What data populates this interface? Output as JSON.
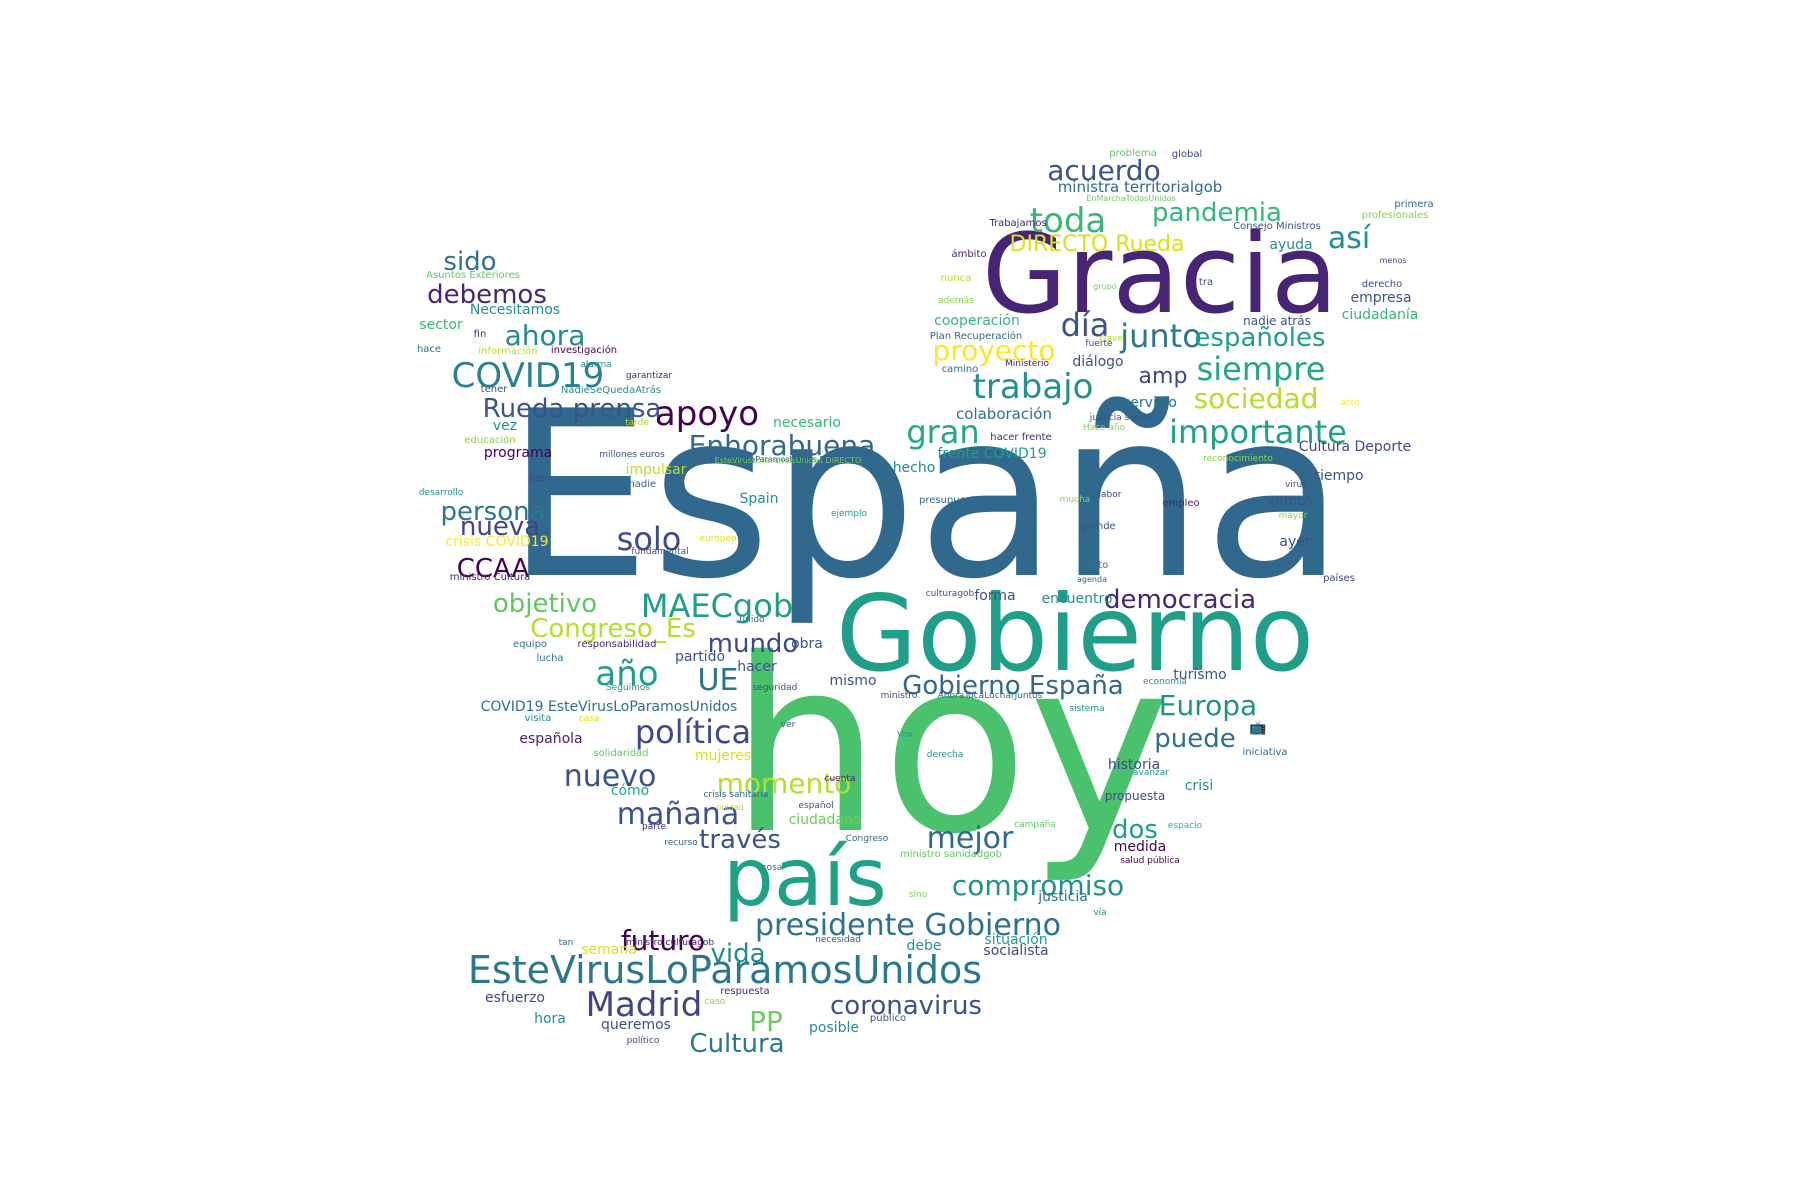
{
  "words": [
    {
      "text": "España",
      "color": "#31688e"
    },
    {
      "text": "hoy",
      "color": "#4ac16d"
    },
    {
      "text": "Gracia",
      "color": "#482475"
    },
    {
      "text": "Gobierno",
      "color": "#1f9e89"
    },
    {
      "text": "país",
      "color": "#1fa187"
    },
    {
      "text": "EsteVirusLoParamosUnidos",
      "color": "#2a788e"
    },
    {
      "text": "COVID19",
      "color": "#26828e"
    },
    {
      "text": "presidente Gobierno",
      "color": "#2c728e"
    },
    {
      "text": "Madrid",
      "color": "#414487"
    },
    {
      "text": "toda",
      "color": "#35b779"
    },
    {
      "text": "junto",
      "color": "#2a788e"
    },
    {
      "text": "día",
      "color": "#3b528b"
    },
    {
      "text": "trabajo",
      "color": "#21918c"
    },
    {
      "text": "siempre",
      "color": "#22a884"
    },
    {
      "text": "importante",
      "color": "#1fa187"
    },
    {
      "text": "acuerdo",
      "color": "#3b528b"
    },
    {
      "text": "pandemia",
      "color": "#35b779"
    },
    {
      "text": "así",
      "color": "#21918c"
    },
    {
      "text": "proyecto",
      "color": "#fde725"
    },
    {
      "text": "sociedad",
      "color": "#b5de2b"
    },
    {
      "text": "gran",
      "color": "#22a884"
    },
    {
      "text": "apoyo",
      "color": "#440154"
    },
    {
      "text": "Rueda prensa",
      "color": "#3b528b"
    },
    {
      "text": "sido",
      "color": "#2c728e"
    },
    {
      "text": "debemos",
      "color": "#482475"
    },
    {
      "text": "ahora",
      "color": "#238a8d"
    },
    {
      "text": "Enhorabuena",
      "color": "#31688e"
    },
    {
      "text": "persona",
      "color": "#2a788e"
    },
    {
      "text": "nueva",
      "color": "#414487"
    },
    {
      "text": "solo",
      "color": "#3e4989"
    },
    {
      "text": "CCAA",
      "color": "#440154"
    },
    {
      "text": "objetivo",
      "color": "#5ec962"
    },
    {
      "text": "MAECgob",
      "color": "#1f9e89"
    },
    {
      "text": "Congreso_Es",
      "color": "#b5de2b"
    },
    {
      "text": "año",
      "color": "#1f9e89"
    },
    {
      "text": "UE",
      "color": "#2c728e"
    },
    {
      "text": "mundo",
      "color": "#3e4989"
    },
    {
      "text": "Gobierno España",
      "color": "#31688e"
    },
    {
      "text": "Europa",
      "color": "#21918c"
    },
    {
      "text": "política",
      "color": "#3e4989"
    },
    {
      "text": "puede",
      "color": "#2c728e"
    },
    {
      "text": "nuevo",
      "color": "#3b528b"
    },
    {
      "text": "momento",
      "color": "#b5de2b"
    },
    {
      "text": "mañana",
      "color": "#3b528b"
    },
    {
      "text": "mejor",
      "color": "#31688e"
    },
    {
      "text": "dos",
      "color": "#1f9e89"
    },
    {
      "text": "través",
      "color": "#3b528b"
    },
    {
      "text": "compromiso",
      "color": "#21918c"
    },
    {
      "text": "futuro",
      "color": "#440154"
    },
    {
      "text": "vida",
      "color": "#238a8d"
    },
    {
      "text": "PP",
      "color": "#6ccd5a"
    },
    {
      "text": "coronavirus",
      "color": "#3b528b"
    },
    {
      "text": "Cultura",
      "color": "#2a788e"
    },
    {
      "text": "democracia",
      "color": "#482475"
    },
    {
      "text": "españoles",
      "color": "#1f9e89"
    },
    {
      "text": "amp",
      "color": "#414487"
    },
    {
      "text": "DIRECTO Rueda",
      "color": "#d8e219"
    },
    {
      "text": "ministra territorialgob",
      "color": "#31688e"
    },
    {
      "text": "Trabajamos",
      "color": "#482475"
    },
    {
      "text": "problema",
      "color": "#5ec962"
    },
    {
      "text": "global",
      "color": "#3e4989"
    },
    {
      "text": "EnMarchaTodosUnidos",
      "color": "#6ccd5a"
    },
    {
      "text": "primera",
      "color": "#31688e"
    },
    {
      "text": "profesionales",
      "color": "#84d44b"
    },
    {
      "text": "Consejo Ministros",
      "color": "#3b528b"
    },
    {
      "text": "ámbito",
      "color": "#482475"
    },
    {
      "text": "ayuda",
      "color": "#21918c"
    },
    {
      "text": "menos",
      "color": "#414487"
    },
    {
      "text": "nunca",
      "color": "#b5de2b"
    },
    {
      "text": "tra",
      "color": "#3e4989"
    },
    {
      "text": "derecho",
      "color": "#3e4989"
    },
    {
      "text": "además",
      "color": "#84d44b"
    },
    {
      "text": "grupo",
      "color": "#6ccd5a"
    },
    {
      "text": "clave",
      "color": "#b5de2b"
    },
    {
      "text": "empresa",
      "color": "#3b528b"
    },
    {
      "text": "cooperación",
      "color": "#35b779"
    },
    {
      "text": "nadie atrás",
      "color": "#3b528b"
    },
    {
      "text": "ciudadanía",
      "color": "#35b779"
    },
    {
      "text": "Plan Recuperación",
      "color": "#31688e"
    },
    {
      "text": "fuerte",
      "color": "#3e4989"
    },
    {
      "text": "camino",
      "color": "#31688e"
    },
    {
      "text": "Ministerio",
      "color": "#482475"
    },
    {
      "text": "diálogo",
      "color": "#3b528b"
    },
    {
      "text": "servicio",
      "color": "#2c728e"
    },
    {
      "text": "justicia social",
      "color": "#3b528b"
    },
    {
      "text": "Hace año",
      "color": "#84d44b"
    },
    {
      "text": "colaboración",
      "color": "#2c728e"
    },
    {
      "text": "acto",
      "color": "#fde725"
    },
    {
      "text": "hacer frente",
      "color": "#482475"
    },
    {
      "text": "Cultura Deporte",
      "color": "#3e4989"
    },
    {
      "text": "frente COVID19",
      "color": "#1f9e89"
    },
    {
      "text": "reconocimiento",
      "color": "#84d44b"
    },
    {
      "text": "hecho",
      "color": "#238a8d"
    },
    {
      "text": "tiempo",
      "color": "#3b528b"
    },
    {
      "text": "virus",
      "color": "#3e4989"
    },
    {
      "text": "labor",
      "color": "#3e4989"
    },
    {
      "text": "mucha",
      "color": "#84d44b"
    },
    {
      "text": "presupuesto",
      "color": "#31688e"
    },
    {
      "text": "empleo",
      "color": "#482475"
    },
    {
      "text": "vamos",
      "color": "#3b528b"
    },
    {
      "text": "mayor",
      "color": "#84d44b"
    },
    {
      "text": "grande",
      "color": "#3b528b"
    },
    {
      "text": "ayer",
      "color": "#3e4989"
    },
    {
      "text": "ejemplo",
      "color": "#1f9e89"
    },
    {
      "text": "europeo",
      "color": "#d8e219"
    },
    {
      "text": "dato",
      "color": "#2a788e"
    },
    {
      "text": "agenda",
      "color": "#31688e"
    },
    {
      "text": "países",
      "color": "#3e4989"
    },
    {
      "text": "forma",
      "color": "#3b528b"
    },
    {
      "text": "encuentro",
      "color": "#21918c"
    },
    {
      "text": "culturagob",
      "color": "#3b528b"
    },
    {
      "text": "Spain",
      "color": "#21918c"
    },
    {
      "text": "impulsar",
      "color": "#b5de2b"
    },
    {
      "text": "dejar nadie",
      "color": "#31688e"
    },
    {
      "text": "crisis COVID19",
      "color": "#fde725"
    },
    {
      "text": "fundamental",
      "color": "#3b528b"
    },
    {
      "text": "ministro Cultura",
      "color": "#482475"
    },
    {
      "text": "unido",
      "color": "#31688e"
    },
    {
      "text": "equipo",
      "color": "#2c728e"
    },
    {
      "text": "responsabilidad",
      "color": "#482475"
    },
    {
      "text": "lucha",
      "color": "#2c728e"
    },
    {
      "text": "partido",
      "color": "#3b528b"
    },
    {
      "text": "obra",
      "color": "#3b528b"
    },
    {
      "text": "hacer",
      "color": "#3b528b"
    },
    {
      "text": "Seguimos",
      "color": "#21918c"
    },
    {
      "text": "seguridad",
      "color": "#3b528b"
    },
    {
      "text": "mismo",
      "color": "#3b528b"
    },
    {
      "text": "turismo",
      "color": "#3b528b"
    },
    {
      "text": "economía",
      "color": "#21918c"
    },
    {
      "text": "ministro",
      "color": "#3e4989"
    },
    {
      "text": "AhoraTocaLucharJuntos",
      "color": "#31688e"
    },
    {
      "text": "sistema",
      "color": "#21918c"
    },
    {
      "text": "COVID19 EsteVirusLoParamosUnidos",
      "color": "#2c728e"
    },
    {
      "text": "visita",
      "color": "#21918c"
    },
    {
      "text": "casa",
      "color": "#d8e219"
    },
    {
      "text": "ver",
      "color": "#3b528b"
    },
    {
      "text": "española",
      "color": "#482475"
    },
    {
      "text": "Vox",
      "color": "#1f9e89"
    },
    {
      "text": "solidaridad",
      "color": "#5ec962"
    },
    {
      "text": "mujeres",
      "color": "#d8e219"
    },
    {
      "text": "derecha",
      "color": "#21918c"
    },
    {
      "text": "iniciativa",
      "color": "#31688e"
    },
    {
      "text": "historia",
      "color": "#3e4989"
    },
    {
      "text": "cuenta",
      "color": "#482475"
    },
    {
      "text": "crisi",
      "color": "#21918c"
    },
    {
      "text": "cómo",
      "color": "#22a884"
    },
    {
      "text": "crisis sanitaria",
      "color": "#31688e"
    },
    {
      "text": "español",
      "color": "#3b528b"
    },
    {
      "text": "propuesta",
      "color": "#3e4989"
    },
    {
      "text": "unidad",
      "color": "#b5de2b"
    },
    {
      "text": "ciudadano",
      "color": "#6ccd5a"
    },
    {
      "text": "campaña",
      "color": "#5ec962"
    },
    {
      "text": "espacio",
      "color": "#35b779"
    },
    {
      "text": "parte",
      "color": "#482475"
    },
    {
      "text": "recurso",
      "color": "#31688e"
    },
    {
      "text": "Congreso",
      "color": "#31688e"
    },
    {
      "text": "ministro sanidadgob",
      "color": "#5ec962"
    },
    {
      "text": "medida",
      "color": "#440154"
    },
    {
      "text": "salud pública",
      "color": "#440154"
    },
    {
      "text": "cosa",
      "color": "#2c728e"
    },
    {
      "text": "sino",
      "color": "#84d44b"
    },
    {
      "text": "justicia",
      "color": "#2c728e"
    },
    {
      "text": "vía",
      "color": "#21918c"
    },
    {
      "text": "tan",
      "color": "#31688e"
    },
    {
      "text": "ministro culturagob",
      "color": "#482475"
    },
    {
      "text": "semana",
      "color": "#d8e219"
    },
    {
      "text": "necesidad",
      "color": "#3b528b"
    },
    {
      "text": "debe",
      "color": "#21918c"
    },
    {
      "text": "situación",
      "color": "#1f9e89"
    },
    {
      "text": "socialista",
      "color": "#3e4989"
    },
    {
      "text": "esfuerzo",
      "color": "#3e4989"
    },
    {
      "text": "respuesta",
      "color": "#482475"
    },
    {
      "text": "caso",
      "color": "#84d44b"
    },
    {
      "text": "hora",
      "color": "#21918c"
    },
    {
      "text": "queremos",
      "color": "#3b528b"
    },
    {
      "text": "posible",
      "color": "#21918c"
    },
    {
      "text": "público",
      "color": "#3b528b"
    },
    {
      "text": "político",
      "color": "#3b528b"
    },
    {
      "text": "Asuntos Exteriores",
      "color": "#5ec962"
    },
    {
      "text": "Necesitamos",
      "color": "#21918c"
    },
    {
      "text": "sector",
      "color": "#35b779"
    },
    {
      "text": "fin",
      "color": "#482475"
    },
    {
      "text": "hace",
      "color": "#2c728e"
    },
    {
      "text": "información",
      "color": "#b5de2b"
    },
    {
      "text": "investigación",
      "color": "#440154"
    },
    {
      "text": "alarma",
      "color": "#21918c"
    },
    {
      "text": "garantizar",
      "color": "#482475"
    },
    {
      "text": "tener",
      "color": "#3e4989"
    },
    {
      "text": "NadieSeQuedaAtrás",
      "color": "#21918c"
    },
    {
      "text": "vez",
      "color": "#21918c"
    },
    {
      "text": "tarde",
      "color": "#b5de2b"
    },
    {
      "text": "necesario",
      "color": "#35b779"
    },
    {
      "text": "educación",
      "color": "#84d44b"
    },
    {
      "text": "programa",
      "color": "#440154"
    },
    {
      "text": "millones euros",
      "color": "#3b528b"
    },
    {
      "text": "EsteVirusLoParamosUnidos DIRECTO",
      "color": "#3b528b"
    },
    {
      "text": "desarrollo",
      "color": "#21918c"
    },
    {
      "text": "bien",
      "color": "#3e4989"
    },
    {
      "text": "EsteVirusLoParamosUnidos DIRECTO",
      "color": "#6ccd5a"
    },
    {
      "text": "avanzar",
      "color": "#21918c"
    },
    {
      "text": "📺",
      "color": "#3e4989"
    }
  ]
}
